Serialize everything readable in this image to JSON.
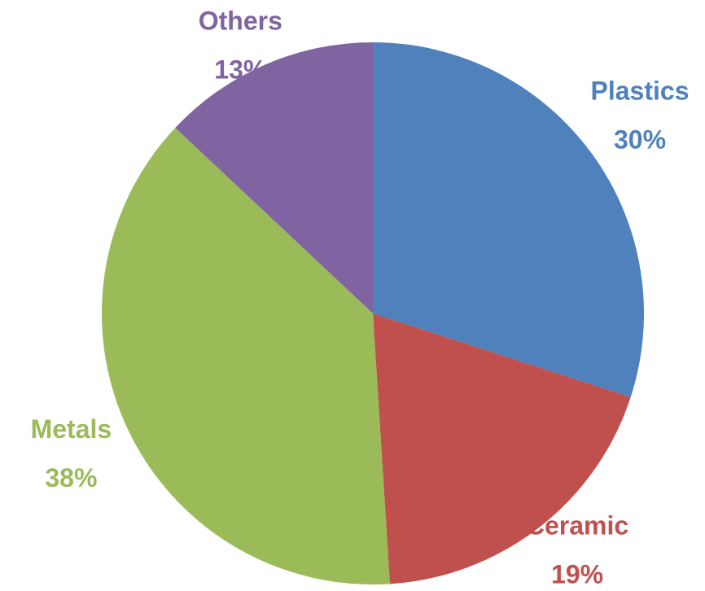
{
  "chart_data": {
    "type": "pie",
    "categories": [
      "Plastics",
      "Ceramic",
      "Metals",
      "Others"
    ],
    "values": [
      30,
      19,
      38,
      13
    ],
    "value_labels": [
      "30%",
      "19%",
      "38%",
      "13%"
    ],
    "colors": [
      "#4f81bd",
      "#c0504d",
      "#9bbb59",
      "#8064a2"
    ]
  }
}
